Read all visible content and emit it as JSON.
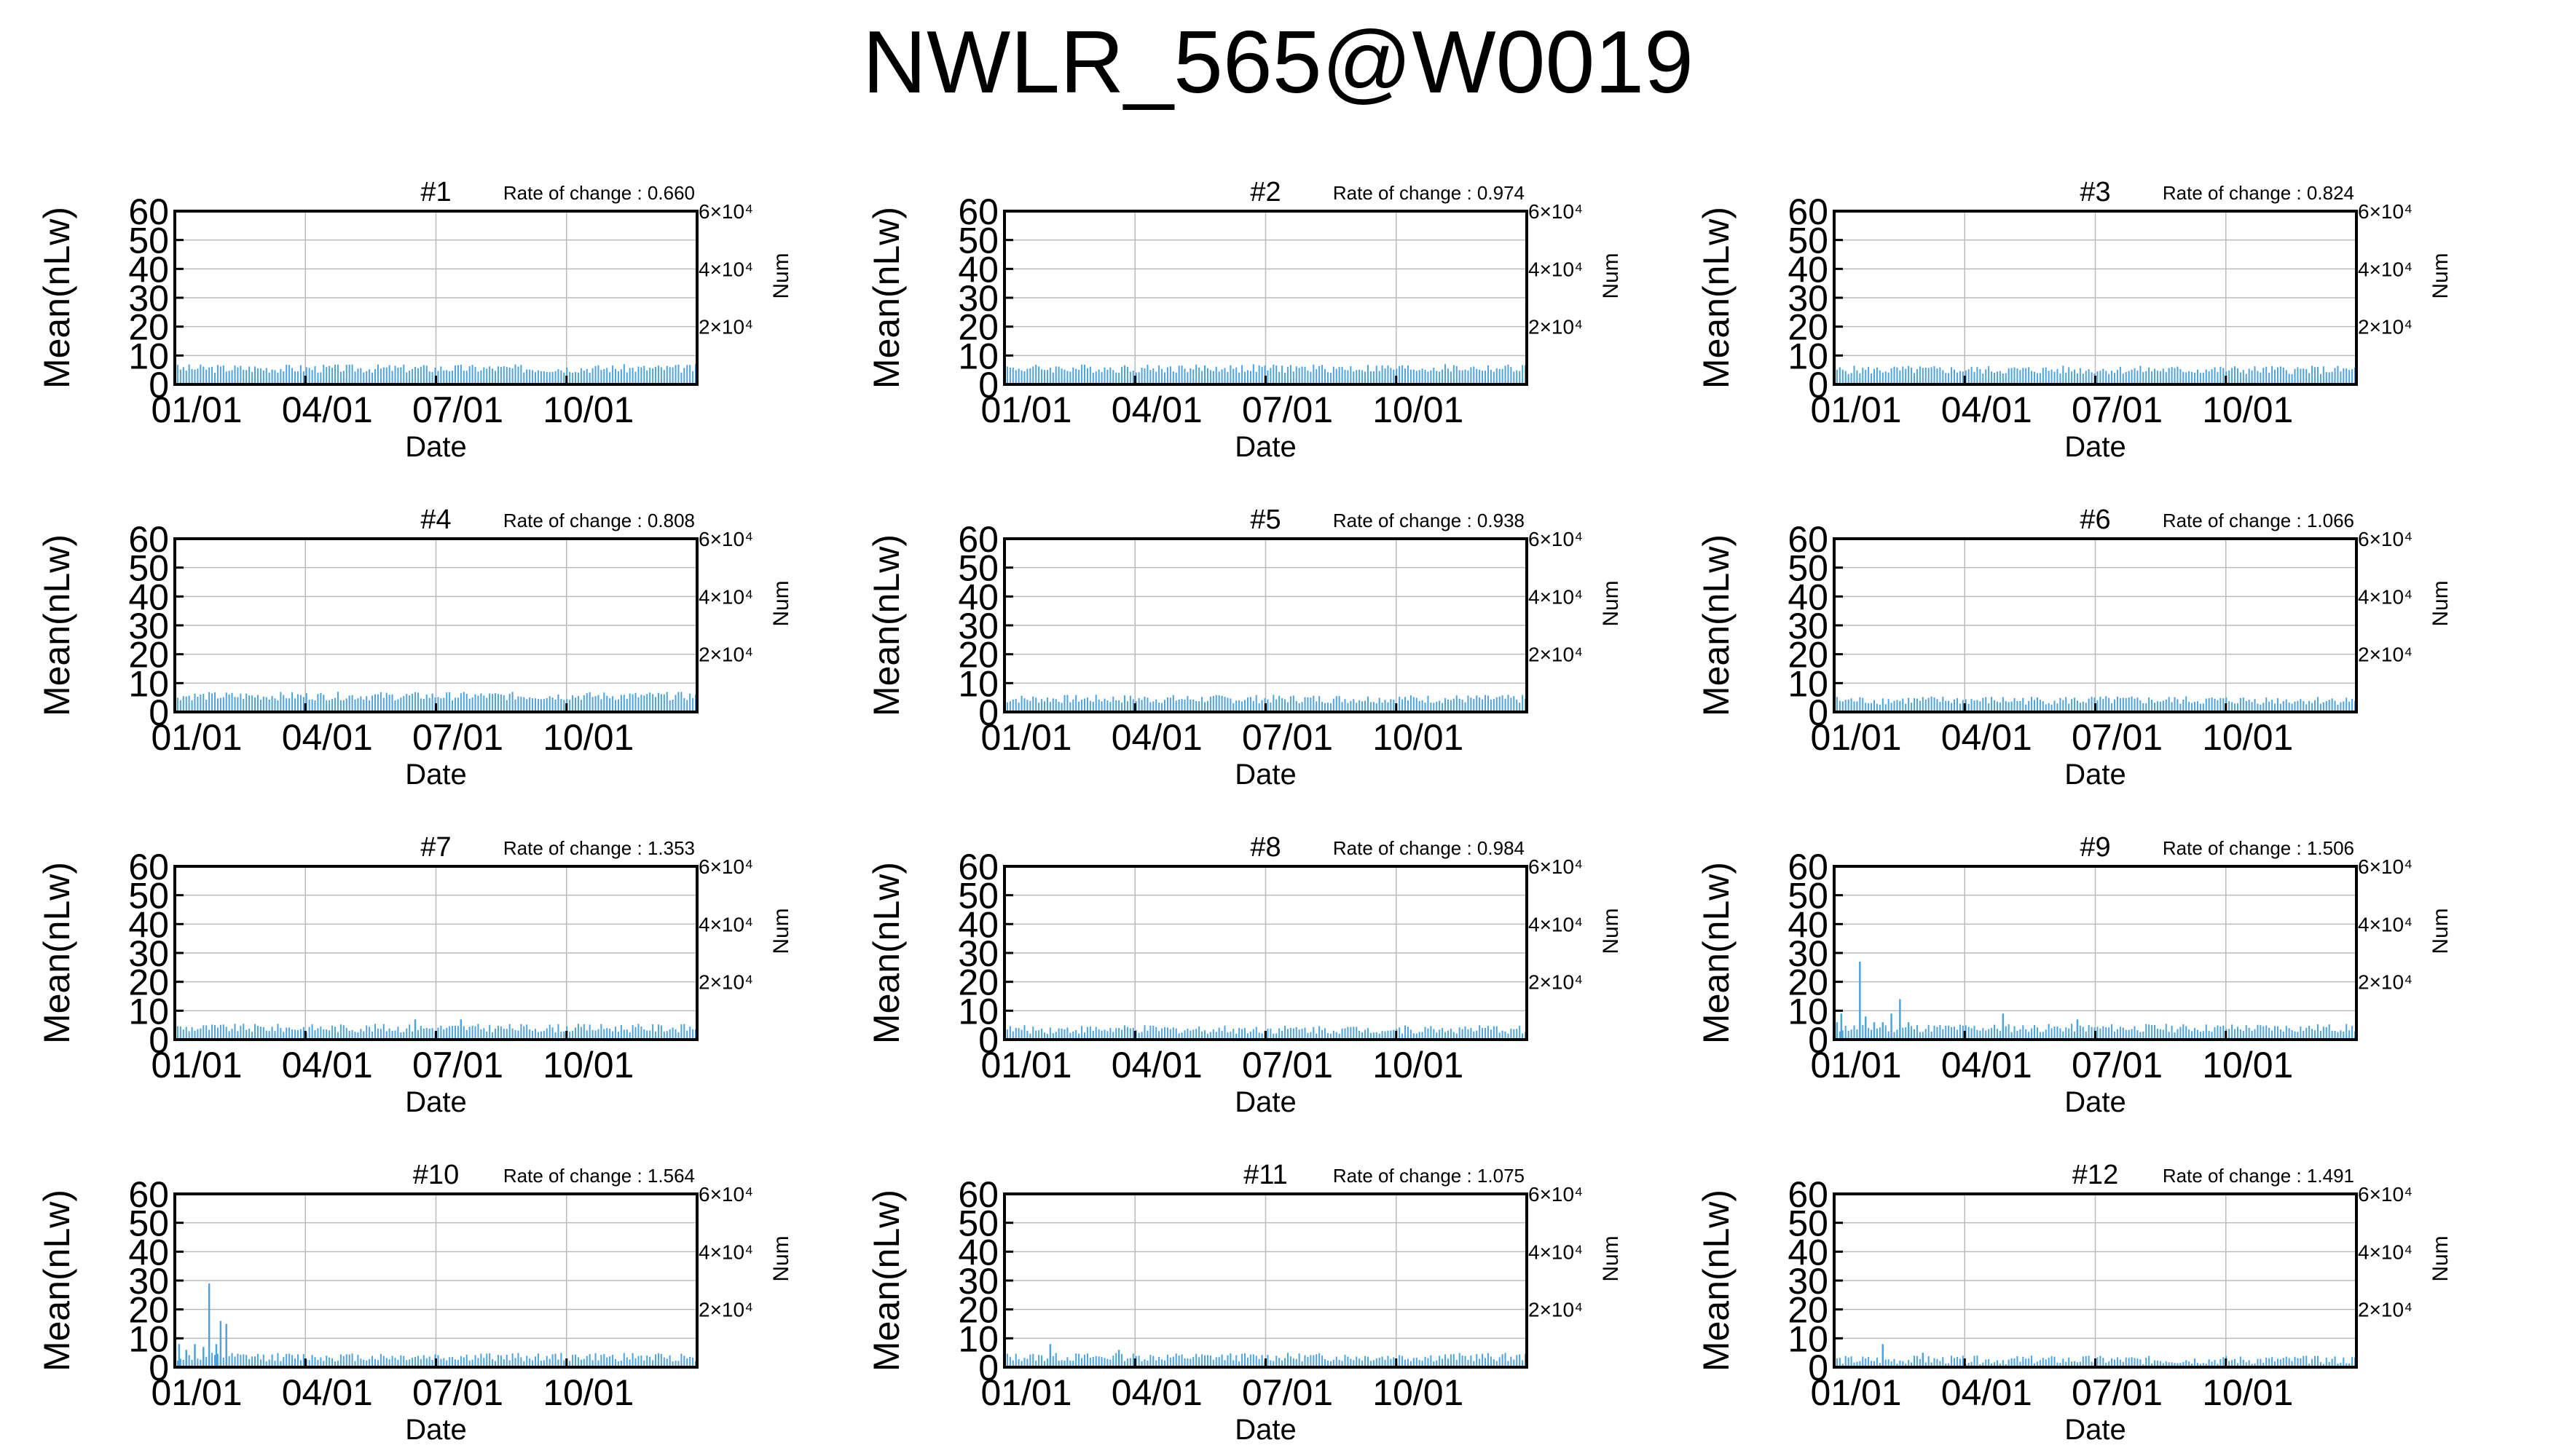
{
  "figure": {
    "title": "NWLR_565@W0019"
  },
  "chart_style": {
    "bar_color": "#4ea3db",
    "grid_color": "#bbbbbb",
    "axis_color": "#000000"
  },
  "chart_data": [
    {
      "type": "bar",
      "title": "#1",
      "rate_label": "Rate of change : 0.660",
      "ylabel": "Mean(nLw)",
      "y2label": "Num",
      "xlabel": "Date",
      "ylim": [
        0,
        60
      ],
      "yticks": [
        "60",
        "50",
        "40",
        "30",
        "20",
        "10",
        "0"
      ],
      "y2ticks": [
        "6×10⁴",
        "4×10⁴",
        "2×10⁴"
      ],
      "xticks": [
        "01/01",
        "04/01",
        "07/01",
        "10/01"
      ],
      "x_range_days": [
        0,
        365
      ],
      "bar_level": 5.5,
      "spikes": []
    },
    {
      "type": "bar",
      "title": "#2",
      "rate_label": "Rate of change : 0.974",
      "ylabel": "Mean(nLw)",
      "y2label": "Num",
      "xlabel": "Date",
      "ylim": [
        0,
        60
      ],
      "yticks": [
        "60",
        "50",
        "40",
        "30",
        "20",
        "10",
        "0"
      ],
      "y2ticks": [
        "6×10⁴",
        "4×10⁴",
        "2×10⁴"
      ],
      "xticks": [
        "01/01",
        "04/01",
        "07/01",
        "10/01"
      ],
      "x_range_days": [
        0,
        365
      ],
      "bar_level": 5.5,
      "spikes": []
    },
    {
      "type": "bar",
      "title": "#3",
      "rate_label": "Rate of change : 0.824",
      "ylabel": "Mean(nLw)",
      "y2label": "Num",
      "xlabel": "Date",
      "ylim": [
        0,
        60
      ],
      "yticks": [
        "60",
        "50",
        "40",
        "30",
        "20",
        "10",
        "0"
      ],
      "y2ticks": [
        "6×10⁴",
        "4×10⁴",
        "2×10⁴"
      ],
      "xticks": [
        "01/01",
        "04/01",
        "07/01",
        "10/01"
      ],
      "x_range_days": [
        0,
        365
      ],
      "bar_level": 5,
      "spikes": []
    },
    {
      "type": "bar",
      "title": "#4",
      "rate_label": "Rate of change : 0.808",
      "ylabel": "Mean(nLw)",
      "y2label": "Num",
      "xlabel": "Date",
      "ylim": [
        0,
        60
      ],
      "yticks": [
        "60",
        "50",
        "40",
        "30",
        "20",
        "10",
        "0"
      ],
      "y2ticks": [
        "6×10⁴",
        "4×10⁴",
        "2×10⁴"
      ],
      "xticks": [
        "01/01",
        "04/01",
        "07/01",
        "10/01"
      ],
      "x_range_days": [
        0,
        365
      ],
      "bar_level": 5.5,
      "spikes": []
    },
    {
      "type": "bar",
      "title": "#5",
      "rate_label": "Rate of change : 0.938",
      "ylabel": "Mean(nLw)",
      "y2label": "Num",
      "xlabel": "Date",
      "ylim": [
        0,
        60
      ],
      "yticks": [
        "60",
        "50",
        "40",
        "30",
        "20",
        "10",
        "0"
      ],
      "y2ticks": [
        "6×10⁴",
        "4×10⁴",
        "2×10⁴"
      ],
      "xticks": [
        "01/01",
        "04/01",
        "07/01",
        "10/01"
      ],
      "x_range_days": [
        0,
        365
      ],
      "bar_level": 4.5,
      "spikes": []
    },
    {
      "type": "bar",
      "title": "#6",
      "rate_label": "Rate of change : 1.066",
      "ylabel": "Mean(nLw)",
      "y2label": "Num",
      "xlabel": "Date",
      "ylim": [
        0,
        60
      ],
      "yticks": [
        "60",
        "50",
        "40",
        "30",
        "20",
        "10",
        "0"
      ],
      "y2ticks": [
        "6×10⁴",
        "4×10⁴",
        "2×10⁴"
      ],
      "xticks": [
        "01/01",
        "04/01",
        "07/01",
        "10/01"
      ],
      "x_range_days": [
        0,
        365
      ],
      "bar_level": 4,
      "spikes": []
    },
    {
      "type": "bar",
      "title": "#7",
      "rate_label": "Rate of change : 1.353",
      "ylabel": "Mean(nLw)",
      "y2label": "Num",
      "xlabel": "Date",
      "ylim": [
        0,
        60
      ],
      "yticks": [
        "60",
        "50",
        "40",
        "30",
        "20",
        "10",
        "0"
      ],
      "y2ticks": [
        "6×10⁴",
        "4×10⁴",
        "2×10⁴"
      ],
      "xticks": [
        "01/01",
        "04/01",
        "07/01",
        "10/01"
      ],
      "x_range_days": [
        0,
        365
      ],
      "bar_level": 4,
      "spikes": [
        [
          168,
          7
        ],
        [
          200,
          7
        ]
      ]
    },
    {
      "type": "bar",
      "title": "#8",
      "rate_label": "Rate of change : 0.984",
      "ylabel": "Mean(nLw)",
      "y2label": "Num",
      "xlabel": "Date",
      "ylim": [
        0,
        60
      ],
      "yticks": [
        "60",
        "50",
        "40",
        "30",
        "20",
        "10",
        "0"
      ],
      "y2ticks": [
        "6×10⁴",
        "4×10⁴",
        "2×10⁴"
      ],
      "xticks": [
        "01/01",
        "04/01",
        "07/01",
        "10/01"
      ],
      "x_range_days": [
        0,
        365
      ],
      "bar_level": 3.5,
      "spikes": []
    },
    {
      "type": "bar",
      "title": "#9",
      "rate_label": "Rate of change : 1.506",
      "ylabel": "Mean(nLw)",
      "y2label": "Num",
      "xlabel": "Date",
      "ylim": [
        0,
        60
      ],
      "yticks": [
        "60",
        "50",
        "40",
        "30",
        "20",
        "10",
        "0"
      ],
      "y2ticks": [
        "6×10⁴",
        "4×10⁴",
        "2×10⁴"
      ],
      "xticks": [
        "01/01",
        "04/01",
        "07/01",
        "10/01"
      ],
      "x_range_days": [
        0,
        365
      ],
      "bar_level": 4,
      "spikes": [
        [
          2,
          6
        ],
        [
          5,
          9
        ],
        [
          18,
          27
        ],
        [
          22,
          8
        ],
        [
          28,
          6
        ],
        [
          34,
          6
        ],
        [
          40,
          9
        ],
        [
          46,
          14
        ],
        [
          52,
          6
        ],
        [
          118,
          9
        ],
        [
          170,
          7
        ]
      ]
    },
    {
      "type": "bar",
      "title": "#10",
      "rate_label": "Rate of change : 1.564",
      "ylabel": "Mean(nLw)",
      "y2label": "Num",
      "xlabel": "Date",
      "ylim": [
        0,
        60
      ],
      "yticks": [
        "60",
        "50",
        "40",
        "30",
        "20",
        "10",
        "0"
      ],
      "y2ticks": [
        "6×10⁴",
        "4×10⁴",
        "2×10⁴"
      ],
      "xticks": [
        "01/01",
        "04/01",
        "07/01",
        "10/01"
      ],
      "x_range_days": [
        0,
        365
      ],
      "bar_level": 3.5,
      "spikes": [
        [
          3,
          8
        ],
        [
          8,
          6
        ],
        [
          14,
          8
        ],
        [
          20,
          7
        ],
        [
          24,
          29
        ],
        [
          29,
          8
        ],
        [
          32,
          16
        ],
        [
          36,
          15
        ]
      ]
    },
    {
      "type": "bar",
      "title": "#11",
      "rate_label": "Rate of change : 1.075",
      "ylabel": "Mean(nLw)",
      "y2label": "Num",
      "xlabel": "Date",
      "ylim": [
        0,
        60
      ],
      "yticks": [
        "60",
        "50",
        "40",
        "30",
        "20",
        "10",
        "0"
      ],
      "y2ticks": [
        "6×10⁴",
        "4×10⁴",
        "2×10⁴"
      ],
      "xticks": [
        "01/01",
        "04/01",
        "07/01",
        "10/01"
      ],
      "x_range_days": [
        0,
        365
      ],
      "bar_level": 3.5,
      "spikes": [
        [
          32,
          8
        ],
        [
          80,
          6
        ]
      ]
    },
    {
      "type": "bar",
      "title": "#12",
      "rate_label": "Rate of change : 1.491",
      "ylabel": "Mean(nLw)",
      "y2label": "Num",
      "xlabel": "Date",
      "ylim": [
        0,
        60
      ],
      "yticks": [
        "60",
        "50",
        "40",
        "30",
        "20",
        "10",
        "0"
      ],
      "y2ticks": [
        "6×10⁴",
        "4×10⁴",
        "2×10⁴"
      ],
      "xticks": [
        "01/01",
        "04/01",
        "07/01",
        "10/01"
      ],
      "x_range_days": [
        0,
        365
      ],
      "bar_level": 2.5,
      "spikes": [
        [
          34,
          8
        ],
        [
          62,
          5
        ]
      ]
    }
  ]
}
